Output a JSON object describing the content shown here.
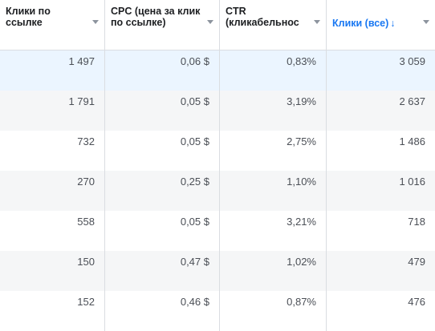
{
  "headers": [
    {
      "label": "Клики по ссылке"
    },
    {
      "label": "CPC (цена за клик по ссылке)"
    },
    {
      "label_line1": "CTR",
      "label_line2": "(кликабельнос"
    },
    {
      "label": "Клики (все)",
      "sort_indicator": "↓"
    }
  ],
  "rows": [
    [
      "1 497",
      "0,06 $",
      "0,83%",
      "3 059"
    ],
    [
      "1 791",
      "0,05 $",
      "3,19%",
      "2 637"
    ],
    [
      "732",
      "0,05 $",
      "2,75%",
      "1 486"
    ],
    [
      "270",
      "0,25 $",
      "1,10%",
      "1 016"
    ],
    [
      "558",
      "0,05 $",
      "3,21%",
      "718"
    ],
    [
      "150",
      "0,47 $",
      "1,02%",
      "479"
    ],
    [
      "152",
      "0,46 $",
      "0,87%",
      "476"
    ]
  ],
  "colors": {
    "accent": "#1877f2",
    "selected_row": "#ebf5ff",
    "striped_row": "#f5f6f7"
  }
}
